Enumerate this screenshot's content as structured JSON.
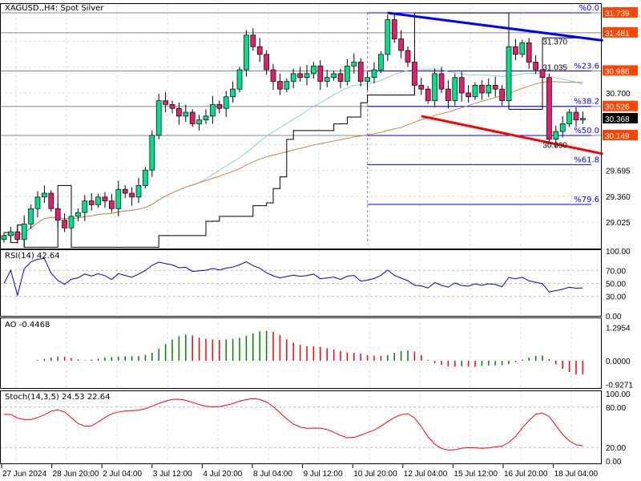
{
  "chart_data": {
    "type": "candlestick",
    "symbol_label": "XAGUSD.,H4:  Spot Silver",
    "x_tick_labels": [
      "27 Jun 2024",
      "28 Jun 20:00",
      "2 Jul 04:00",
      "3 Jul 12:00",
      "4 Jul 20:00",
      "8 Jul 04:00",
      "9 Jul 12:00",
      "10 Jul 20:00",
      "12 Jul 04:00",
      "15 Jul 12:00",
      "16 Jul 20:00",
      "18 Jul 04:00"
    ],
    "y_ticks": [
      31.37,
      31.035,
      30.7,
      30.03,
      29.695,
      29.36,
      29.025
    ],
    "ylim": [
      28.65,
      31.9
    ],
    "close": [
      28.85,
      28.9,
      28.8,
      29.0,
      29.2,
      29.35,
      29.4,
      29.2,
      29.05,
      28.95,
      29.1,
      29.15,
      29.3,
      29.25,
      29.35,
      29.3,
      29.2,
      29.45,
      29.4,
      29.35,
      29.5,
      29.7,
      30.15,
      30.6,
      30.55,
      30.5,
      30.4,
      30.45,
      30.3,
      30.35,
      30.4,
      30.55,
      30.5,
      30.65,
      30.75,
      31.0,
      31.45,
      31.3,
      31.2,
      31.0,
      30.85,
      30.75,
      30.85,
      30.95,
      30.9,
      30.95,
      31.05,
      30.85,
      30.9,
      30.95,
      30.85,
      31.05,
      31.1,
      30.85,
      30.9,
      31.0,
      31.2,
      31.65,
      31.4,
      31.25,
      31.1,
      30.8,
      30.75,
      30.6,
      30.95,
      30.75,
      30.6,
      30.9,
      30.7,
      30.65,
      30.8,
      30.7,
      30.8,
      30.75,
      30.6,
      31.3,
      31.2,
      31.35,
      31.1,
      31.0,
      30.9,
      30.1,
      30.2,
      30.3,
      30.45,
      30.35,
      30.37
    ],
    "price_tags": [
      {
        "value": "31.739",
        "color": "#ff4500"
      },
      {
        "value": "31.481",
        "color": "#ff4500"
      },
      {
        "value": "30.986",
        "color": "#ff4500"
      },
      {
        "value": "30.526",
        "color": "#ff4500"
      },
      {
        "value": "30.368",
        "color": "#000000"
      },
      {
        "value": "30.149",
        "color": "#ff4500"
      }
    ],
    "fibonacci": {
      "color": "#0000ff",
      "start_index": 54,
      "levels": [
        {
          "label": "%0.0",
          "price": 31.739
        },
        {
          "label": "%23.6",
          "price": 30.986
        },
        {
          "label": "%38.2",
          "price": 30.526
        },
        {
          "label": "%50.0",
          "price": 30.149
        },
        {
          "label": "%61.8",
          "price": 29.77
        },
        {
          "label": "%79.6",
          "price": 29.255
        }
      ]
    },
    "trendlines": [
      {
        "color": "#0000ff",
        "from": [
          57,
          31.739
        ],
        "to": [
          89,
          31.38
        ]
      },
      {
        "color": "#ff0000",
        "from": [
          62,
          30.4
        ],
        "to": [
          89,
          29.91
        ]
      }
    ],
    "bull_color": "#00e08a",
    "bear_color": "#e0206a",
    "indicators": {
      "rsi": {
        "label": "RSI(14) 42.64",
        "ticks": [
          "100.00",
          "70.00",
          "50.00",
          "30.00",
          "0.00"
        ],
        "color": "#0000cd"
      },
      "ao": {
        "label": "AO -0.4468",
        "ticks": [
          "1.2954",
          "0.0000",
          "-0.9271"
        ],
        "up_color": "#008000",
        "down_color": "#ff0000"
      },
      "stoch": {
        "label": "Stoch(14,3,5) 24.53 22.64",
        "ticks": [
          "100.00",
          "80.00",
          "20.00",
          "0.00"
        ],
        "color": "#ff0000"
      }
    }
  }
}
